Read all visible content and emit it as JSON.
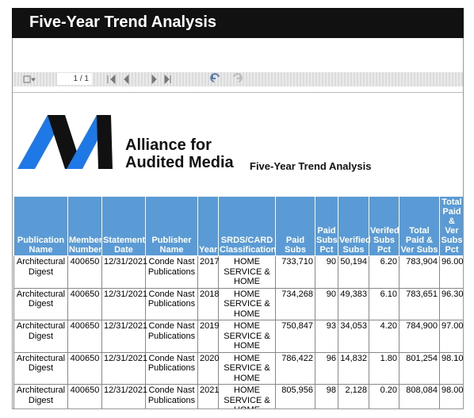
{
  "header": {
    "title": "Five-Year Trend Analysis"
  },
  "toolbar": {
    "page": "1 / 1"
  },
  "logo": {
    "line1": "Alliance for",
    "line2": "Audited Media"
  },
  "report_title": "Five-Year Trend Analysis",
  "table": {
    "columns": [
      "Publication Name",
      "Member Number",
      "Statement Date",
      "Publisher Name",
      "Year",
      "SRDS/CARD Classification",
      "Paid Subs",
      "Paid Subs Pct",
      "Verified Subs",
      "Verifed Subs Pct",
      "Total Paid & Ver Subs",
      "Total Paid & Ver Subs Pct"
    ],
    "rows": [
      [
        "Architectural Digest",
        "400650",
        "12/31/2021",
        "Conde Nast Publications",
        "2017",
        "HOME SERVICE & HOME",
        "733,710",
        "90",
        "50,194",
        "6.20",
        "783,904",
        "96.00"
      ],
      [
        "Architectural Digest",
        "400650",
        "12/31/2021",
        "Conde Nast Publications",
        "2018",
        "HOME SERVICE & HOME",
        "734,268",
        "90",
        "49,383",
        "6.10",
        "783,651",
        "96.30"
      ],
      [
        "Architectural Digest",
        "400650",
        "12/31/2021",
        "Conde Nast Publications",
        "2019",
        "HOME SERVICE & HOME",
        "750,847",
        "93",
        "34,053",
        "4.20",
        "784,900",
        "97.00"
      ],
      [
        "Architectural Digest",
        "400650",
        "12/31/2021",
        "Conde Nast Publications",
        "2020",
        "HOME SERVICE & HOME",
        "786,422",
        "96",
        "14,832",
        "1.80",
        "801,254",
        "98.10"
      ],
      [
        "Architectural Digest",
        "400650",
        "12/31/2021",
        "Conde Nast Publications",
        "2021",
        "HOME SERVICE & HOME",
        "805,956",
        "98",
        "2,128",
        "0.20",
        "808,084",
        "98.00"
      ]
    ]
  }
}
